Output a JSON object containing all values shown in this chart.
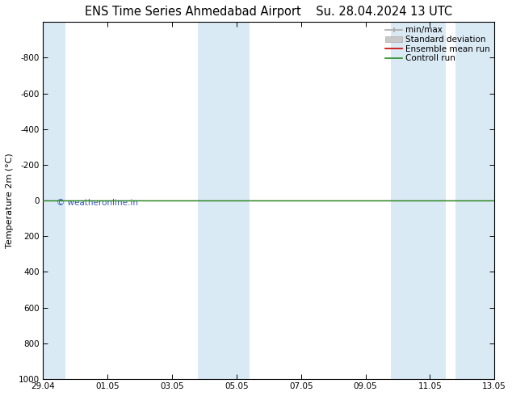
{
  "title_left": "ENS Time Series Ahmedabad Airport",
  "title_right": "Su. 28.04.2024 13 UTC",
  "ylabel": "Temperature 2m (°C)",
  "ylim_top": -1000,
  "ylim_bottom": 1000,
  "yticks": [
    -800,
    -600,
    -400,
    -200,
    0,
    200,
    400,
    600,
    800,
    1000
  ],
  "xtick_labels": [
    "29.04",
    "01.05",
    "03.05",
    "05.05",
    "07.05",
    "09.05",
    "11.05",
    "13.05"
  ],
  "xtick_positions": [
    0,
    2,
    4,
    6,
    8,
    10,
    12,
    14
  ],
  "xlim_start": 0,
  "xlim_end": 14,
  "weekend_bands": [
    {
      "xmin": -0.1,
      "xmax": 0.7
    },
    {
      "xmin": 4.8,
      "xmax": 6.4
    },
    {
      "xmin": 10.8,
      "xmax": 12.5
    },
    {
      "xmin": 12.8,
      "xmax": 14.1
    }
  ],
  "green_line_y": 0,
  "red_line_y": 0,
  "control_run_color": "#228B22",
  "ensemble_mean_color": "#cc0000",
  "std_dev_color": "#c8c8c8",
  "minmax_color": "#aaaaaa",
  "band_color": "#daeaf5",
  "watermark": "© weatheronline.in",
  "watermark_color": "#3355bb",
  "background_color": "#ffffff",
  "title_fontsize": 10.5,
  "tick_fontsize": 7.5,
  "legend_fontsize": 7.5
}
